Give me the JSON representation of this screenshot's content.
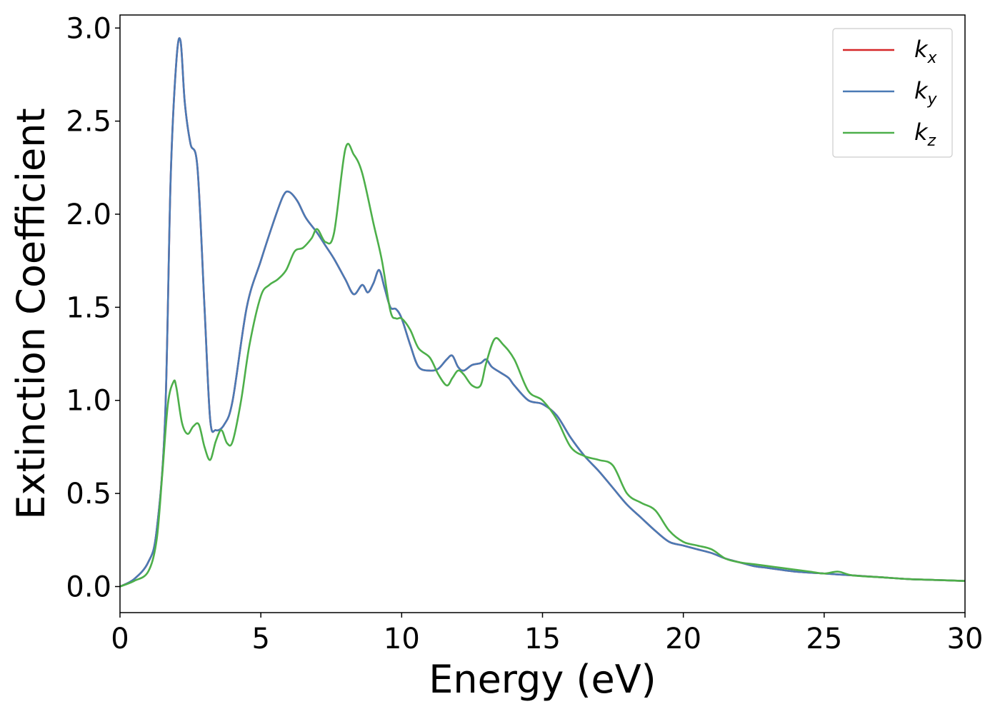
{
  "chart_data": {
    "type": "line",
    "title": "",
    "xlabel": "Energy (eV)",
    "ylabel": "Extinction Coefficient",
    "xlim": [
      0,
      30
    ],
    "ylim": [
      -0.14,
      3.07
    ],
    "xticks": [
      0,
      5,
      10,
      15,
      20,
      25,
      30
    ],
    "xtick_labels": [
      "0",
      "5",
      "10",
      "15",
      "20",
      "25",
      "30"
    ],
    "yticks": [
      0.0,
      0.5,
      1.0,
      1.5,
      2.0,
      2.5,
      3.0
    ],
    "ytick_labels": [
      "0.0",
      "0.5",
      "1.0",
      "1.5",
      "2.0",
      "2.5",
      "3.0"
    ],
    "grid": false,
    "legend_position": "top-right",
    "series": [
      {
        "name": "k_x",
        "label_base": "k",
        "label_sub": "x",
        "color": "#d62728",
        "x": [
          0,
          0.5,
          1.0,
          1.3,
          1.6,
          1.8,
          2.0,
          2.15,
          2.3,
          2.5,
          2.75,
          3.0,
          3.2,
          3.4,
          3.7,
          4.0,
          4.5,
          5.0,
          5.5,
          5.8,
          6.0,
          6.3,
          6.6,
          7.0,
          7.3,
          7.6,
          8.0,
          8.3,
          8.6,
          8.8,
          9.0,
          9.2,
          9.4,
          9.6,
          9.8,
          10.0,
          10.3,
          10.6,
          11.0,
          11.3,
          11.6,
          11.8,
          12.0,
          12.2,
          12.5,
          12.8,
          13.0,
          13.2,
          13.5,
          13.8,
          14.0,
          14.5,
          15.0,
          15.5,
          16.0,
          16.5,
          17.0,
          17.5,
          18.0,
          18.5,
          19.0,
          19.5,
          20.0,
          20.5,
          21.0,
          21.5,
          22.0,
          22.5,
          23.0,
          24.0,
          25.0,
          26.0,
          27.0,
          28.0,
          29.0,
          30.0
        ],
        "y": [
          0.0,
          0.04,
          0.13,
          0.3,
          0.9,
          2.2,
          2.82,
          2.93,
          2.6,
          2.38,
          2.25,
          1.5,
          0.9,
          0.84,
          0.87,
          1.0,
          1.5,
          1.75,
          1.98,
          2.1,
          2.12,
          2.07,
          1.98,
          1.9,
          1.83,
          1.76,
          1.65,
          1.57,
          1.62,
          1.58,
          1.63,
          1.7,
          1.6,
          1.5,
          1.49,
          1.44,
          1.3,
          1.18,
          1.16,
          1.17,
          1.22,
          1.24,
          1.18,
          1.16,
          1.19,
          1.2,
          1.22,
          1.18,
          1.15,
          1.12,
          1.08,
          1.0,
          0.98,
          0.92,
          0.8,
          0.7,
          0.62,
          0.53,
          0.44,
          0.37,
          0.3,
          0.24,
          0.22,
          0.2,
          0.18,
          0.15,
          0.13,
          0.11,
          0.1,
          0.08,
          0.07,
          0.06,
          0.05,
          0.04,
          0.035,
          0.03
        ]
      },
      {
        "name": "k_y",
        "label_base": "k",
        "label_sub": "y",
        "color": "#4a7ab5",
        "x": [
          0,
          0.5,
          1.0,
          1.3,
          1.6,
          1.8,
          2.0,
          2.15,
          2.3,
          2.5,
          2.75,
          3.0,
          3.2,
          3.4,
          3.7,
          4.0,
          4.5,
          5.0,
          5.5,
          5.8,
          6.0,
          6.3,
          6.6,
          7.0,
          7.3,
          7.6,
          8.0,
          8.3,
          8.6,
          8.8,
          9.0,
          9.2,
          9.4,
          9.6,
          9.8,
          10.0,
          10.3,
          10.6,
          11.0,
          11.3,
          11.6,
          11.8,
          12.0,
          12.2,
          12.5,
          12.8,
          13.0,
          13.2,
          13.5,
          13.8,
          14.0,
          14.5,
          15.0,
          15.5,
          16.0,
          16.5,
          17.0,
          17.5,
          18.0,
          18.5,
          19.0,
          19.5,
          20.0,
          20.5,
          21.0,
          21.5,
          22.0,
          22.5,
          23.0,
          24.0,
          25.0,
          26.0,
          27.0,
          28.0,
          29.0,
          30.0
        ],
        "y": [
          0.0,
          0.04,
          0.13,
          0.3,
          0.9,
          2.2,
          2.82,
          2.93,
          2.6,
          2.38,
          2.25,
          1.5,
          0.9,
          0.84,
          0.87,
          1.0,
          1.5,
          1.75,
          1.98,
          2.1,
          2.12,
          2.07,
          1.98,
          1.9,
          1.83,
          1.76,
          1.65,
          1.57,
          1.62,
          1.58,
          1.63,
          1.7,
          1.6,
          1.5,
          1.49,
          1.44,
          1.3,
          1.18,
          1.16,
          1.17,
          1.22,
          1.24,
          1.18,
          1.16,
          1.19,
          1.2,
          1.22,
          1.18,
          1.15,
          1.12,
          1.08,
          1.0,
          0.98,
          0.92,
          0.8,
          0.7,
          0.62,
          0.53,
          0.44,
          0.37,
          0.3,
          0.24,
          0.22,
          0.2,
          0.18,
          0.15,
          0.13,
          0.11,
          0.1,
          0.08,
          0.07,
          0.06,
          0.05,
          0.04,
          0.035,
          0.03
        ]
      },
      {
        "name": "k_z",
        "label_base": "k",
        "label_sub": "z",
        "color": "#4daf4a",
        "x": [
          0,
          0.5,
          1.0,
          1.3,
          1.5,
          1.7,
          1.9,
          2.0,
          2.2,
          2.4,
          2.6,
          2.8,
          3.0,
          3.2,
          3.4,
          3.6,
          3.8,
          4.0,
          4.3,
          4.6,
          5.0,
          5.3,
          5.6,
          5.9,
          6.2,
          6.5,
          6.8,
          7.0,
          7.3,
          7.6,
          8.0,
          8.3,
          8.6,
          9.0,
          9.3,
          9.6,
          9.8,
          10.0,
          10.3,
          10.6,
          11.0,
          11.3,
          11.6,
          11.8,
          12.0,
          12.2,
          12.5,
          12.8,
          13.0,
          13.3,
          13.6,
          14.0,
          14.5,
          15.0,
          15.5,
          16.0,
          16.5,
          17.0,
          17.5,
          18.0,
          18.5,
          19.0,
          19.5,
          20.0,
          20.5,
          21.0,
          21.5,
          22.0,
          22.5,
          23.0,
          23.5,
          24.0,
          24.5,
          25.0,
          25.5,
          26.0,
          27.0,
          28.0,
          29.0,
          30.0
        ],
        "y": [
          0.0,
          0.03,
          0.08,
          0.25,
          0.6,
          0.98,
          1.1,
          1.07,
          0.88,
          0.82,
          0.86,
          0.87,
          0.75,
          0.68,
          0.78,
          0.84,
          0.77,
          0.78,
          1.0,
          1.3,
          1.56,
          1.62,
          1.65,
          1.7,
          1.8,
          1.82,
          1.87,
          1.92,
          1.85,
          1.9,
          2.35,
          2.32,
          2.22,
          1.95,
          1.75,
          1.48,
          1.44,
          1.44,
          1.38,
          1.28,
          1.23,
          1.14,
          1.08,
          1.12,
          1.16,
          1.14,
          1.08,
          1.08,
          1.2,
          1.33,
          1.3,
          1.22,
          1.05,
          1.0,
          0.9,
          0.75,
          0.7,
          0.68,
          0.65,
          0.5,
          0.45,
          0.41,
          0.3,
          0.24,
          0.22,
          0.2,
          0.15,
          0.13,
          0.12,
          0.11,
          0.1,
          0.09,
          0.08,
          0.07,
          0.08,
          0.06,
          0.05,
          0.04,
          0.035,
          0.03
        ]
      }
    ]
  }
}
